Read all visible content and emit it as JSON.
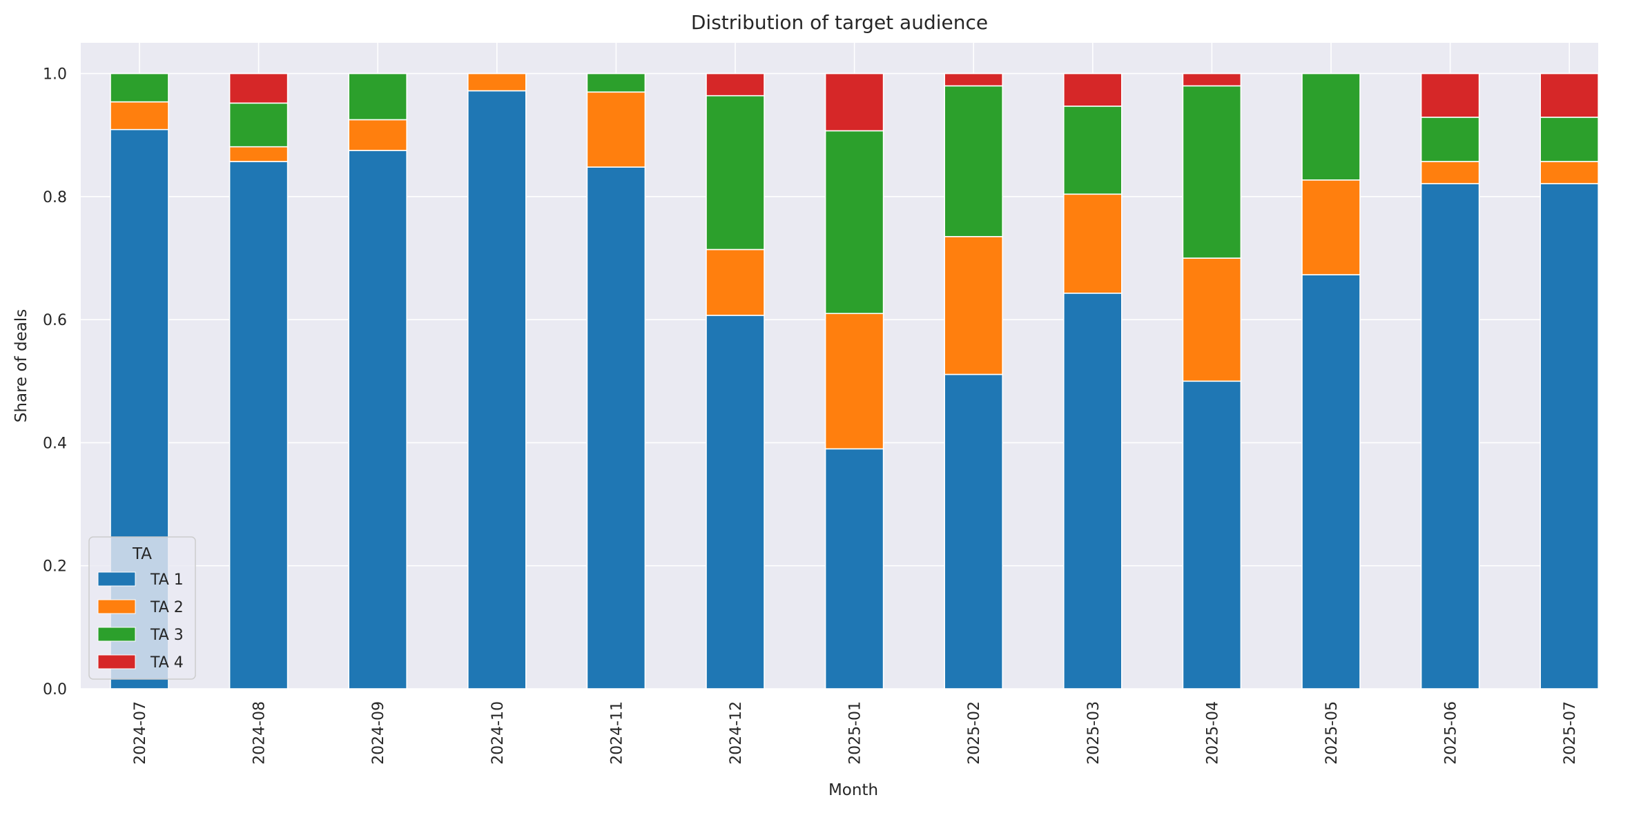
{
  "chart_data": {
    "type": "bar",
    "stacked": true,
    "title": "Distribution of target audience",
    "xlabel": "Month",
    "ylabel": "Share of deals",
    "ylim": [
      0,
      1.05
    ],
    "yticks": [
      "0.0",
      "0.2",
      "0.4",
      "0.6",
      "0.8",
      "1.0"
    ],
    "grid": true,
    "legend": {
      "title": "TA",
      "placement": "lower-left"
    },
    "categories": [
      "2024-07",
      "2024-08",
      "2024-09",
      "2024-10",
      "2024-11",
      "2024-12",
      "2025-01",
      "2025-02",
      "2025-03",
      "2025-04",
      "2025-05",
      "2025-06",
      "2025-07"
    ],
    "series": [
      {
        "name": "TA 1",
        "color": "#1f77b4",
        "values": [
          0.909,
          0.857,
          0.875,
          0.972,
          0.848,
          0.607,
          0.39,
          0.511,
          0.643,
          0.5,
          0.673,
          0.821,
          0.821
        ]
      },
      {
        "name": "TA 2",
        "color": "#ff7f0e",
        "values": [
          0.045,
          0.024,
          0.05,
          0.028,
          0.122,
          0.107,
          0.22,
          0.224,
          0.161,
          0.2,
          0.154,
          0.036,
          0.036
        ]
      },
      {
        "name": "TA 3",
        "color": "#2ca02c",
        "values": [
          0.046,
          0.071,
          0.075,
          0.0,
          0.03,
          0.25,
          0.297,
          0.245,
          0.143,
          0.28,
          0.173,
          0.072,
          0.072
        ]
      },
      {
        "name": "TA 4",
        "color": "#d62728",
        "values": [
          0.0,
          0.048,
          0.0,
          0.0,
          0.0,
          0.036,
          0.093,
          0.02,
          0.053,
          0.02,
          0.0,
          0.071,
          0.071
        ]
      }
    ]
  }
}
